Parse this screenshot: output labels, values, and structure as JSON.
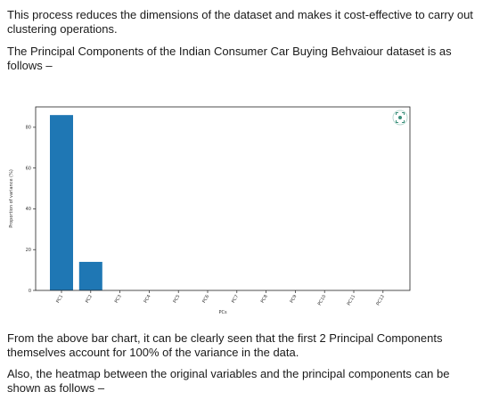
{
  "text": {
    "p1": "This process reduces the dimensions of the dataset and makes it cost-effective to carry out clustering operations.",
    "p2": "The Principal Components of the Indian Consumer Car Buying Behvaiour dataset is as follows –",
    "p3": "From the above bar chart, it can be clearly seen that the first 2 Principal Components themselves account for 100% of the variance in the data.",
    "p4": "Also, the heatmap between the original variables and the principal components can be shown as follows –"
  },
  "chart_data": {
    "type": "bar",
    "categories": [
      "PC1",
      "PC2",
      "PC3",
      "PC4",
      "PC5",
      "PC6",
      "PC7",
      "PC8",
      "PC9",
      "PC10",
      "PC11",
      "PC12"
    ],
    "values": [
      86,
      14,
      0,
      0,
      0,
      0,
      0,
      0,
      0,
      0,
      0,
      0
    ],
    "xlabel": "PCs",
    "ylabel": "Proportion of variance (%)",
    "ylim": [
      0,
      90
    ],
    "yticks": [
      0,
      20,
      40,
      60,
      80
    ],
    "bar_color": "#1f77b4",
    "grid": false,
    "corner_icon": "screenshot-icon"
  }
}
